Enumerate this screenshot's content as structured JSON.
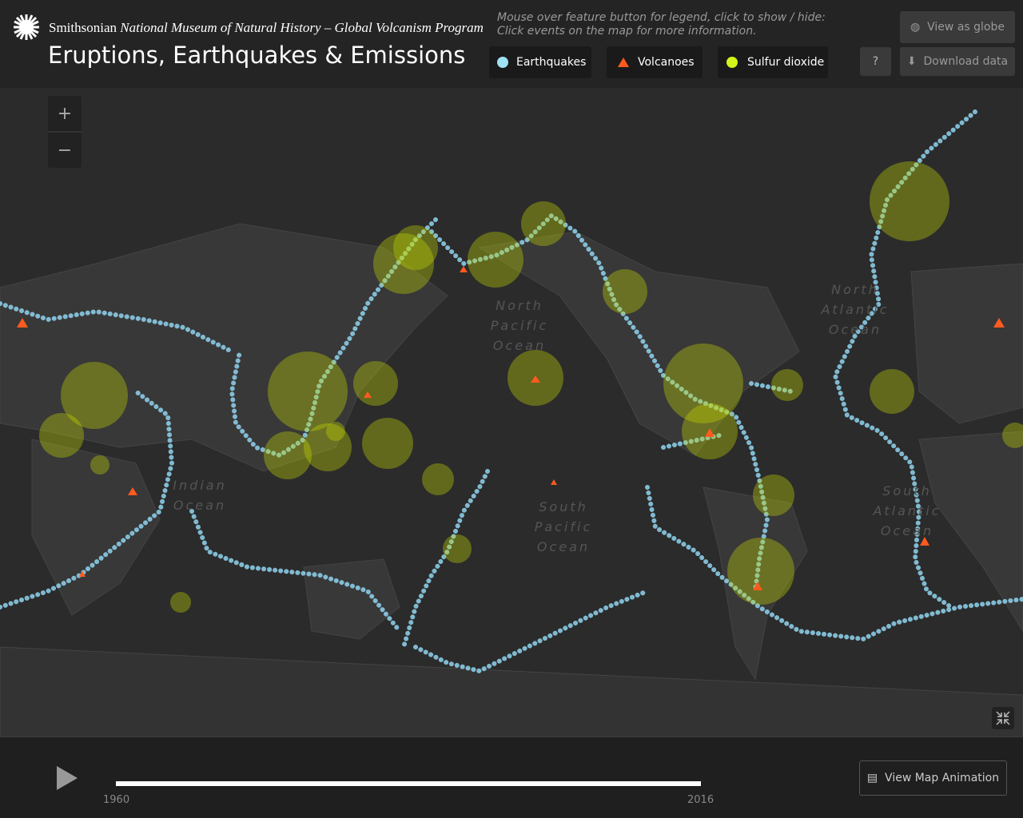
{
  "header": {
    "logo_text": "Smithsonian",
    "subtitle": "National Museum of Natural History – Global Volcanism Program",
    "title": "Eruptions, Earthquakes & Emissions",
    "hint": [
      "Mouse over feature button for legend, click to show / hide:",
      "Click events on the map for more information."
    ]
  },
  "legend_buttons": [
    "Earthquakes",
    "Volcanoes",
    "Sulfur dioxide"
  ],
  "buttons": {
    "globe": "View as globe",
    "help": "?",
    "download": "Download data"
  },
  "zoom": {
    "in": "+",
    "out": "−"
  },
  "map_labels": [
    [
      "North",
      "Pacific",
      "Ocean"
    ],
    [
      "North",
      "Atlantic",
      "Ocean"
    ],
    [
      "South",
      "Pacific",
      "Ocean"
    ],
    [
      "South",
      "Atlantic",
      "Ocean"
    ],
    [
      "Indian",
      "Ocean"
    ]
  ],
  "timeline": {
    "start": "1960",
    "end": "2016",
    "animation": "View Map Animation"
  }
}
